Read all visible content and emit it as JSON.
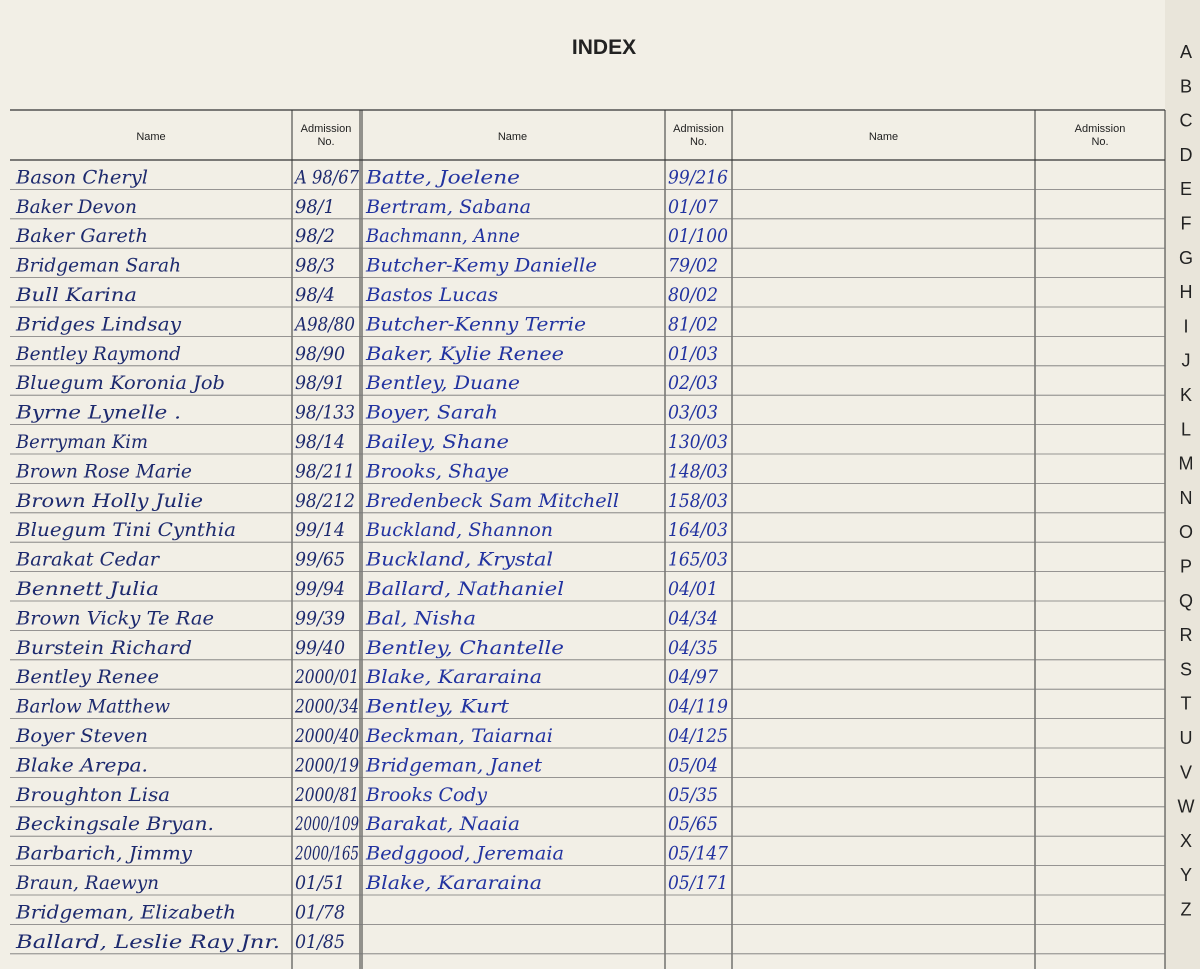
{
  "title": "INDEX",
  "header": {
    "name": "Name",
    "admission": [
      "Admission",
      "No."
    ]
  },
  "left_entries": [
    [
      "Bason Cheryl",
      "A 98/67"
    ],
    [
      "Baker Devon",
      "98/1"
    ],
    [
      "Baker Gareth",
      "98/2"
    ],
    [
      "Bridgeman Sarah",
      "98/3"
    ],
    [
      "Bull Karina",
      "98/4"
    ],
    [
      "Bridges Lindsay",
      "A98/80"
    ],
    [
      "Bentley Raymond",
      "98/90"
    ],
    [
      "Bluegum Koronia Job",
      "98/91"
    ],
    [
      "Byrne Lynelle .",
      "98/133"
    ],
    [
      "Berryman Kim",
      "98/14"
    ],
    [
      "Brown Rose Marie",
      "98/211"
    ],
    [
      "Brown Holly Julie",
      "98/212"
    ],
    [
      "Bluegum Tini Cynthia",
      "99/14"
    ],
    [
      "Barakat Cedar",
      "99/65"
    ],
    [
      "Bennett Julia",
      "99/94"
    ],
    [
      "Brown Vicky Te Rae",
      "99/39"
    ],
    [
      "Burstein Richard",
      "99/40"
    ],
    [
      "Bentley Renee",
      "2000/01"
    ],
    [
      "Barlow Matthew",
      "2000/34"
    ],
    [
      "Boyer Steven",
      "2000/40"
    ],
    [
      "Blake Arepa.",
      "2000/19"
    ],
    [
      "Broughton Lisa",
      "2000/81"
    ],
    [
      "Beckingsale Bryan.",
      "2000/109"
    ],
    [
      "Barbarich, Jimmy",
      "2000/165"
    ],
    [
      "Braun, Raewyn",
      "01/51"
    ],
    [
      "Bridgeman, Elizabeth",
      "01/78"
    ],
    [
      "Ballard, Leslie Ray Jnr.",
      "01/85"
    ]
  ],
  "middle_entries": [
    [
      "Batte, Joelene",
      "99/216"
    ],
    [
      "Bertram, Sabana",
      "01/07"
    ],
    [
      "Bachmann, Anne",
      "01/100"
    ],
    [
      "Butcher-Kemy Danielle",
      "79/02"
    ],
    [
      "Bastos Lucas",
      "80/02"
    ],
    [
      "Butcher-Kenny Terrie",
      "81/02"
    ],
    [
      "Baker, Kylie Renee",
      "01/03"
    ],
    [
      "Bentley, Duane",
      "02/03"
    ],
    [
      "Boyer, Sarah",
      "03/03"
    ],
    [
      "Bailey, Shane",
      "130/03"
    ],
    [
      "Brooks, Shaye",
      "148/03"
    ],
    [
      "Bredenbeck Sam Mitchell",
      "158/03"
    ],
    [
      "Buckland, Shannon",
      "164/03"
    ],
    [
      "Buckland, Krystal",
      "165/03"
    ],
    [
      "Ballard, Nathaniel",
      "04/01"
    ],
    [
      "Bal, Nisha",
      "04/34"
    ],
    [
      "Bentley, Chantelle",
      "04/35"
    ],
    [
      "Blake, Kararaina",
      "04/97"
    ],
    [
      "Bentley, Kurt",
      "04/119"
    ],
    [
      "Beckman, Taiarnai",
      "04/125"
    ],
    [
      "Bridgeman, Janet",
      "05/04"
    ],
    [
      "Brooks Cody",
      "05/35"
    ],
    [
      "Barakat, Naaia",
      "05/65"
    ],
    [
      "Bedggood, Jeremaia",
      "05/147"
    ],
    [
      "Blake, Kararaina",
      "05/171"
    ]
  ],
  "tabs": [
    "A",
    "B",
    "C",
    "D",
    "E",
    "F",
    "G",
    "H",
    "I",
    "J",
    "K",
    "L",
    "M",
    "N",
    "O",
    "P",
    "Q",
    "R",
    "S",
    "T",
    "U",
    "V",
    "W",
    "X",
    "Y",
    "Z"
  ]
}
